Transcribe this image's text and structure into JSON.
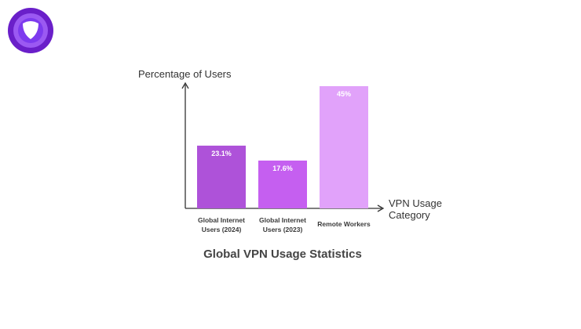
{
  "brand": {
    "logo_icon": "shield-logo-icon",
    "logo_color": "#7b2ff0"
  },
  "chart_data": {
    "type": "bar",
    "title": "Global VPN Usage Statistics",
    "xlabel_lines": [
      "VPN Usage",
      "Category"
    ],
    "ylabel": "Percentage of Users",
    "ylim": [
      0,
      50
    ],
    "categories": [
      {
        "lines": [
          "Global Internet",
          "Users (2024)"
        ]
      },
      {
        "lines": [
          "Global Internet",
          "Users (2023)"
        ]
      },
      {
        "lines": [
          "Remote Workers"
        ]
      }
    ],
    "values": [
      23.1,
      17.6,
      45
    ],
    "value_labels": [
      "23.1%",
      "17.6%",
      "45%"
    ],
    "colors": [
      "#ae52d9",
      "#c55ff0",
      "#e1a2fa"
    ]
  }
}
